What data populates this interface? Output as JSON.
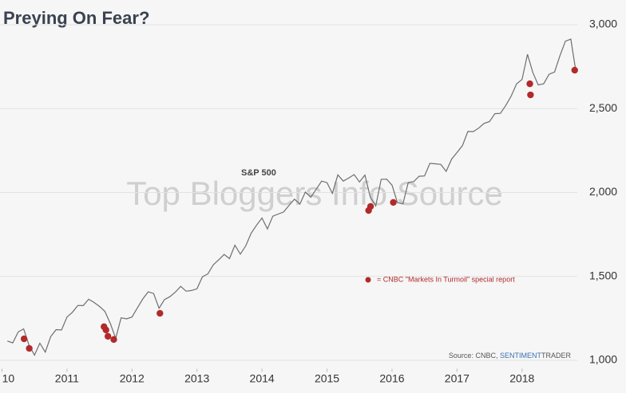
{
  "chart_data": {
    "type": "line",
    "title": "Preying On Fear?",
    "watermark": "Top Bloggers Info Source",
    "source": "Source: CNBC,",
    "source_brand": [
      "SENTIMENT",
      "TRADER"
    ],
    "line_label": "S&P 500",
    "xlim": [
      2009.97,
      2018.85
    ],
    "xticks": [
      {
        "value": 2010,
        "label": "10"
      },
      2011,
      2012,
      2013,
      2014,
      2015,
      2016,
      2017,
      2018
    ],
    "ylim": [
      950,
      3100
    ],
    "yticks": [
      {
        "value": 1000,
        "label": "1,000"
      },
      {
        "value": 1500,
        "label": "1,500"
      },
      {
        "value": 2000,
        "label": "2,000"
      },
      {
        "value": 2500,
        "label": "2,500"
      },
      {
        "value": 3000,
        "label": "3,000"
      }
    ],
    "grid": true,
    "series": [
      {
        "name": "S&P 500",
        "color": "#6e6e6e",
        "x": [
          2010.083,
          2010.167,
          2010.25,
          2010.333,
          2010.417,
          2010.5,
          2010.583,
          2010.667,
          2010.75,
          2010.833,
          2010.917,
          2011.0,
          2011.083,
          2011.167,
          2011.25,
          2011.333,
          2011.417,
          2011.5,
          2011.583,
          2011.667,
          2011.75,
          2011.833,
          2011.917,
          2012.0,
          2012.083,
          2012.167,
          2012.25,
          2012.333,
          2012.417,
          2012.5,
          2012.583,
          2012.667,
          2012.75,
          2012.833,
          2012.917,
          2013.0,
          2013.083,
          2013.167,
          2013.25,
          2013.333,
          2013.417,
          2013.5,
          2013.583,
          2013.667,
          2013.75,
          2013.833,
          2013.917,
          2014.0,
          2014.083,
          2014.167,
          2014.25,
          2014.333,
          2014.417,
          2014.5,
          2014.583,
          2014.667,
          2014.75,
          2014.833,
          2014.917,
          2015.0,
          2015.083,
          2015.167,
          2015.25,
          2015.333,
          2015.417,
          2015.5,
          2015.583,
          2015.667,
          2015.75,
          2015.833,
          2015.917,
          2016.0,
          2016.083,
          2016.167,
          2016.25,
          2016.333,
          2016.417,
          2016.5,
          2016.583,
          2016.667,
          2016.75,
          2016.833,
          2016.917,
          2017.0,
          2017.083,
          2017.167,
          2017.25,
          2017.333,
          2017.417,
          2017.5,
          2017.583,
          2017.667,
          2017.75,
          2017.833,
          2017.917,
          2018.0,
          2018.083,
          2018.167,
          2018.25,
          2018.333,
          2018.417,
          2018.5,
          2018.583,
          2018.667,
          2018.75,
          2018.833
        ],
        "values": [
          1115,
          1104,
          1169,
          1187,
          1089,
          1031,
          1102,
          1049,
          1141,
          1183,
          1181,
          1258,
          1286,
          1327,
          1326,
          1364,
          1345,
          1321,
          1292,
          1219,
          1131,
          1253,
          1247,
          1258,
          1312,
          1366,
          1408,
          1398,
          1310,
          1362,
          1379,
          1406,
          1441,
          1412,
          1416,
          1426,
          1498,
          1515,
          1569,
          1598,
          1631,
          1606,
          1686,
          1633,
          1682,
          1757,
          1806,
          1848,
          1783,
          1859,
          1872,
          1884,
          1924,
          1960,
          1931,
          2003,
          1972,
          2018,
          2068,
          2059,
          1995,
          2105,
          2068,
          2086,
          2107,
          2063,
          2104,
          1972,
          1920,
          2079,
          2080,
          2044,
          1940,
          1932,
          2060,
          2065,
          2097,
          2099,
          2174,
          2171,
          2168,
          2126,
          2199,
          2239,
          2279,
          2364,
          2363,
          2384,
          2412,
          2423,
          2470,
          2472,
          2519,
          2575,
          2648,
          2674,
          2824,
          2714,
          2641,
          2648,
          2705,
          2718,
          2816,
          2902,
          2914,
          2711
        ]
      },
      {
        "name": "= CNBC \"Markets In Turmoil\" special report",
        "color": "#b22a2a",
        "marker": "dot",
        "x": [
          2010.34,
          2010.42,
          2011.57,
          2011.6,
          2011.63,
          2011.72,
          2012.43,
          2015.64,
          2015.67,
          2016.02,
          2018.12,
          2018.13,
          2018.81
        ],
        "values": [
          1128,
          1071,
          1200,
          1181,
          1143,
          1124,
          1280,
          1893,
          1917,
          1941,
          2648,
          2582,
          2729
        ]
      }
    ]
  }
}
